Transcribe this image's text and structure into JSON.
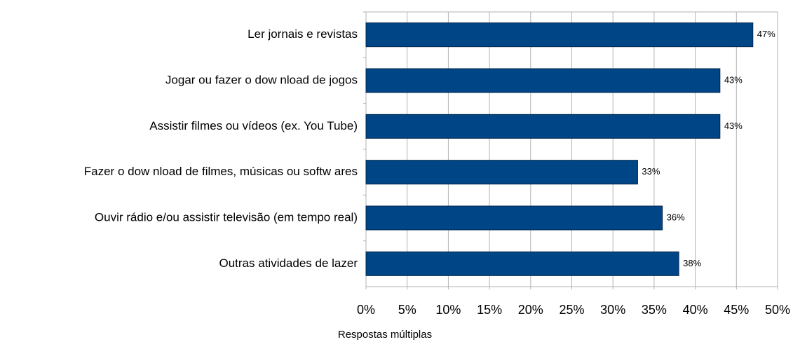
{
  "chart_data": {
    "type": "hbar",
    "categories": [
      "Ler jornais e revistas",
      "Jogar ou fazer o dow nload de jogos",
      "Assistir filmes ou vídeos (ex. You Tube)",
      "Fazer o dow nload de filmes, músicas ou softw ares",
      "Ouvir rádio e/ou assistir televisão (em tempo real)",
      "Outras atividades de lazer"
    ],
    "values": [
      47,
      43,
      43,
      33,
      36,
      38
    ],
    "value_labels": [
      "47%",
      "43%",
      "43%",
      "33%",
      "36%",
      "38%"
    ],
    "color": "#004586",
    "xlim": [
      0,
      50
    ],
    "xticks": [
      {
        "value": 0,
        "label": "0%"
      },
      {
        "value": 5,
        "label": "5%"
      },
      {
        "value": 10,
        "label": "10%"
      },
      {
        "value": 15,
        "label": "15%"
      },
      {
        "value": 20,
        "label": "20%"
      },
      {
        "value": 25,
        "label": "25%"
      },
      {
        "value": 30,
        "label": "30%"
      },
      {
        "value": 35,
        "label": "35%"
      },
      {
        "value": 40,
        "label": "40%"
      },
      {
        "value": 45,
        "label": "45%"
      },
      {
        "value": 50,
        "label": "50%"
      }
    ],
    "x_label": "Respostas múltiplas",
    "grid": true
  }
}
